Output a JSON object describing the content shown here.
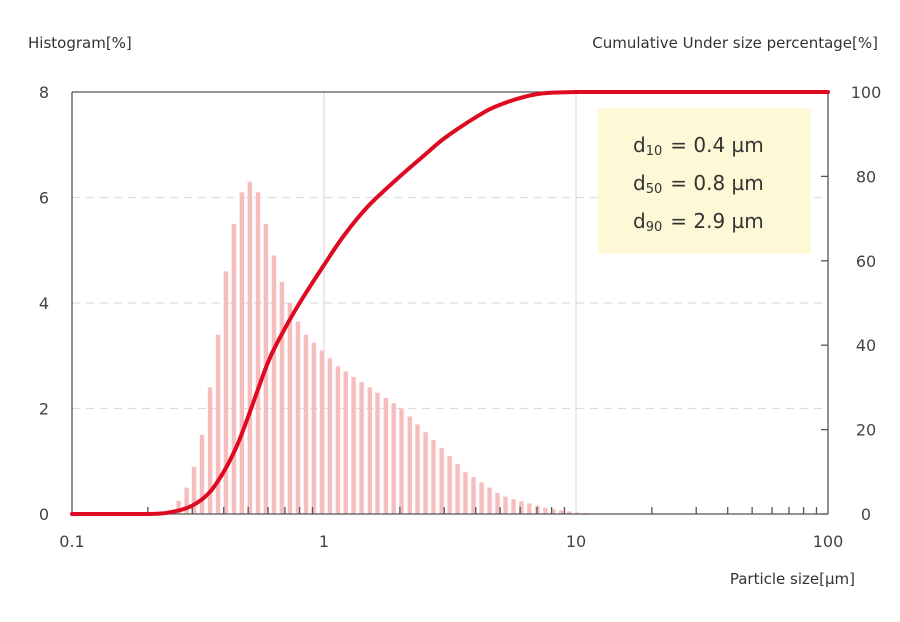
{
  "chart_data": {
    "type": "bar",
    "title": "",
    "y_left_label": "Histogram[%]",
    "y_right_label": "Cumulative Under size percentage[%]",
    "xlabel": "Particle size[µm]",
    "x_scale": "log",
    "xlim": [
      0.1,
      100
    ],
    "ylim_left": [
      0,
      8
    ],
    "ylim_right": [
      0,
      100
    ],
    "x_ticks": [
      "0.1",
      "1",
      "10",
      "100"
    ],
    "y_left_ticks": [
      "0",
      "2",
      "4",
      "6",
      "8"
    ],
    "y_right_ticks": [
      "0",
      "20",
      "40",
      "60",
      "80",
      "100"
    ],
    "grid": true,
    "colors": {
      "histogram": "#f7bcbc",
      "cumulative": "#dd0a22",
      "legend_bg": "#fdf8d6"
    },
    "histogram": {
      "name": "Histogram",
      "x": [
        0.265,
        0.285,
        0.305,
        0.328,
        0.353,
        0.38,
        0.408,
        0.439,
        0.472,
        0.508,
        0.547,
        0.588,
        0.633,
        0.681,
        0.732,
        0.788,
        0.848,
        0.912,
        0.981,
        1.055,
        1.135,
        1.22,
        1.31,
        1.41,
        1.52,
        1.63,
        1.76,
        1.89,
        2.03,
        2.19,
        2.35,
        2.53,
        2.72,
        2.93,
        3.15,
        3.39,
        3.64,
        3.92,
        4.22,
        4.54,
        4.88,
        5.25,
        5.65,
        6.07,
        6.53,
        7.03,
        7.56,
        8.13,
        8.75,
        9.41,
        10.12,
        10.89
      ],
      "values": [
        0.25,
        0.5,
        0.9,
        1.5,
        2.4,
        3.4,
        4.6,
        5.5,
        6.1,
        6.3,
        6.1,
        5.5,
        4.9,
        4.4,
        4.0,
        3.65,
        3.4,
        3.25,
        3.1,
        2.95,
        2.8,
        2.7,
        2.6,
        2.5,
        2.4,
        2.3,
        2.2,
        2.1,
        2.0,
        1.85,
        1.7,
        1.55,
        1.4,
        1.25,
        1.1,
        0.95,
        0.8,
        0.7,
        0.6,
        0.5,
        0.4,
        0.33,
        0.28,
        0.24,
        0.2,
        0.16,
        0.12,
        0.09,
        0.07,
        0.05,
        0.03,
        0.02
      ]
    },
    "cumulative": {
      "name": "Cumulative Under size percentage",
      "x": [
        0.1,
        0.2,
        0.25,
        0.3,
        0.35,
        0.4,
        0.45,
        0.5,
        0.6,
        0.7,
        0.8,
        1.0,
        1.2,
        1.5,
        2.0,
        2.5,
        3.0,
        4.0,
        5.0,
        7.0,
        10.0,
        15.0,
        100.0
      ],
      "values": [
        0,
        0,
        0.5,
        2,
        5,
        10,
        16,
        23,
        36,
        44,
        50,
        59,
        66,
        73,
        80,
        85,
        89,
        94,
        97,
        99.5,
        100,
        100,
        100
      ]
    },
    "stats": [
      {
        "label": "d",
        "sub": "10",
        "value": "= 0.4 µm"
      },
      {
        "label": "d",
        "sub": "50",
        "value": "= 0.8 µm"
      },
      {
        "label": "d",
        "sub": "90",
        "value": "= 2.9 µm"
      }
    ]
  }
}
